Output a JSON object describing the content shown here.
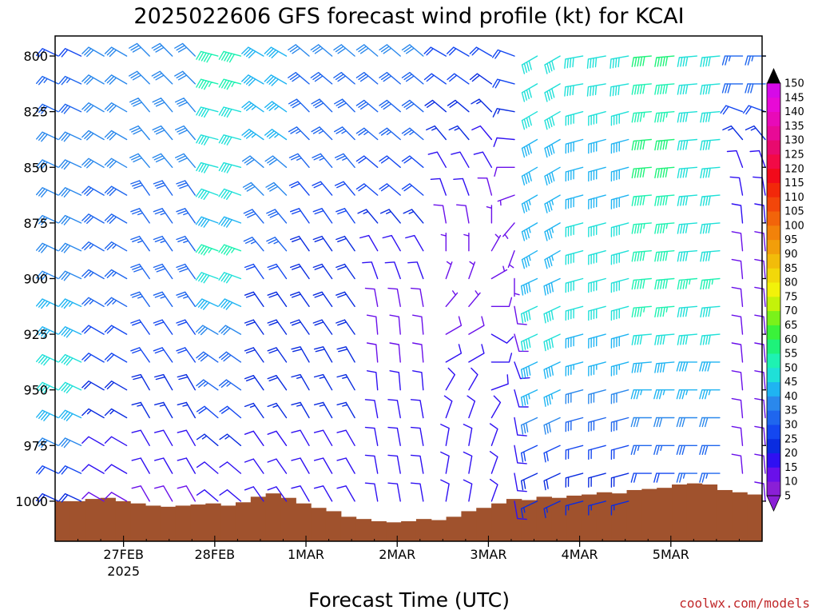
{
  "chart_data": {
    "type": "wind-barb time-height profile",
    "title": "2025022606 GFS forecast wind profile (kt) for KCAI",
    "xlabel": "Forecast Time (UTC)",
    "ylabel": "",
    "credit": "coolwx.com/models",
    "x_ticks": [
      {
        "label": "27FEB",
        "sublabel": "2025"
      },
      {
        "label": "28FEB",
        "sublabel": ""
      },
      {
        "label": "1MAR",
        "sublabel": ""
      },
      {
        "label": "2MAR",
        "sublabel": ""
      },
      {
        "label": "3MAR",
        "sublabel": ""
      },
      {
        "label": "4MAR",
        "sublabel": ""
      },
      {
        "label": "5MAR",
        "sublabel": ""
      }
    ],
    "y_ticks": [
      "800",
      "825",
      "850",
      "875",
      "900",
      "925",
      "950",
      "975",
      "1000"
    ],
    "colorbar_labels": [
      "5",
      "10",
      "15",
      "20",
      "25",
      "30",
      "35",
      "40",
      "45",
      "50",
      "55",
      "60",
      "65",
      "70",
      "75",
      "80",
      "85",
      "90",
      "95",
      "100",
      "105",
      "110",
      "115",
      "120",
      "125",
      "130",
      "135",
      "140",
      "145",
      "150"
    ],
    "colorbar_colors": [
      "#8a1fd6",
      "#6a10ea",
      "#2f10f2",
      "#0a2ce0",
      "#1447f0",
      "#1f66ee",
      "#2a88ec",
      "#1fb4f2",
      "#1fe0d8",
      "#1ef2b2",
      "#1ef27a",
      "#3af23a",
      "#7af21a",
      "#c4f20a",
      "#f2f20a",
      "#f2d80a",
      "#f2bc0a",
      "#f29e0a",
      "#f2820a",
      "#f2640a",
      "#f2460a",
      "#f2280a",
      "#f20a1a",
      "#f20a46",
      "#e80a6e",
      "#e80a96",
      "#e80ab8",
      "#e80ad6",
      "#d60ae8"
    ],
    "pressure_levels": [
      800,
      812.5,
      825,
      837.5,
      850,
      862.5,
      875,
      887.5,
      900,
      912.5,
      925,
      937.5,
      950,
      962.5,
      975,
      987.5,
      1000
    ],
    "times_hours": [
      0,
      6,
      12,
      18,
      24,
      30,
      36,
      42,
      48,
      54,
      60,
      66,
      72,
      78,
      84,
      90,
      96,
      102,
      108,
      114,
      120,
      126,
      132,
      138,
      144,
      150,
      156,
      162,
      168,
      174,
      180,
      186
    ],
    "x_domain_hours": [
      0,
      186
    ],
    "first_tick_hour": 18,
    "tick_step_hours": 24,
    "y_domain": [
      791,
      1018
    ],
    "surface_pressure": [
      1000,
      1000,
      999,
      998.5,
      1000,
      1001,
      1002,
      1002.5,
      1002,
      1001.5,
      1001,
      1002,
      1000.5,
      998,
      996.5,
      998.5,
      1001,
      1003,
      1004.5,
      1007,
      1008,
      1009,
      1009.5,
      1009,
      1008,
      1008.5,
      1007,
      1004.5,
      1003,
      1001,
      999,
      999.5,
      998,
      998.5,
      997.5,
      997,
      996,
      996.5,
      995,
      994.5,
      994,
      992.5,
      992,
      992.5,
      995,
      996,
      997
    ],
    "wind_profile": [
      {
        "times": [
          0,
          6
        ],
        "speed": [
          22,
          25,
          28,
          30,
          30,
          30,
          30,
          30,
          32,
          35,
          38,
          40,
          40,
          38,
          30,
          22,
          18
        ],
        "dir": [
          295,
          295,
          295,
          295,
          295,
          295,
          295,
          295,
          295,
          295,
          295,
          295,
          295,
          295,
          295,
          295,
          295
        ]
      },
      {
        "times": [
          12,
          18
        ],
        "speed": [
          30,
          30,
          32,
          30,
          30,
          28,
          28,
          25,
          25,
          25,
          22,
          20,
          18,
          15,
          12,
          10,
          8
        ],
        "dir": [
          300,
          300,
          300,
          300,
          300,
          300,
          300,
          300,
          300,
          300,
          300,
          300,
          300,
          300,
          300,
          300,
          300
        ]
      },
      {
        "times": [
          24,
          30,
          36
        ],
        "speed": [
          32,
          32,
          30,
          30,
          30,
          28,
          25,
          25,
          28,
          25,
          22,
          20,
          18,
          15,
          12,
          10,
          8
        ],
        "dir": [
          315,
          315,
          320,
          320,
          320,
          325,
          325,
          325,
          325,
          325,
          325,
          325,
          330,
          330,
          330,
          330,
          330
        ]
      },
      {
        "times": [
          42,
          48
        ],
        "speed": [
          48,
          45,
          42,
          40,
          42,
          40,
          38,
          45,
          42,
          38,
          32,
          28,
          25,
          20,
          15,
          12,
          10
        ],
        "dir": [
          285,
          285,
          285,
          285,
          285,
          290,
          290,
          290,
          290,
          295,
          300,
          305,
          305,
          310,
          310,
          310,
          310
        ]
      },
      {
        "times": [
          54,
          60
        ],
        "speed": [
          38,
          38,
          35,
          35,
          32,
          30,
          28,
          25,
          20,
          18,
          18,
          18,
          18,
          15,
          12,
          12,
          12
        ],
        "dir": [
          300,
          300,
          305,
          305,
          310,
          315,
          320,
          320,
          325,
          325,
          325,
          325,
          325,
          325,
          325,
          325,
          325
        ]
      },
      {
        "times": [
          66,
          72,
          78
        ],
        "speed": [
          30,
          28,
          28,
          25,
          25,
          22,
          20,
          18,
          18,
          18,
          18,
          18,
          15,
          15,
          12,
          12,
          10
        ],
        "dir": [
          310,
          310,
          315,
          315,
          320,
          320,
          325,
          325,
          325,
          325,
          325,
          330,
          330,
          330,
          330,
          330,
          330
        ]
      },
      {
        "times": [
          84,
          90,
          96
        ],
        "speed": [
          30,
          28,
          28,
          25,
          22,
          20,
          15,
          12,
          10,
          8,
          8,
          8,
          10,
          10,
          10,
          10,
          10
        ],
        "dir": [
          310,
          310,
          310,
          310,
          310,
          310,
          320,
          330,
          340,
          350,
          355,
          355,
          355,
          350,
          350,
          350,
          350
        ]
      },
      {
        "times": [
          102,
          108
        ],
        "speed": [
          22,
          20,
          18,
          15,
          12,
          10,
          8,
          5,
          5,
          5,
          8,
          10,
          10,
          12,
          12,
          12,
          10
        ],
        "dir": [
          300,
          305,
          310,
          320,
          330,
          340,
          350,
          360,
          20,
          40,
          60,
          60,
          30,
          20,
          10,
          10,
          10
        ]
      },
      {
        "times": [
          114
        ],
        "speed": [
          20,
          18,
          15,
          12,
          10,
          8,
          5,
          5,
          5,
          8,
          10,
          10,
          12,
          12,
          12,
          12,
          10
        ],
        "dir": [
          300,
          305,
          315,
          320,
          330,
          345,
          360,
          30,
          60,
          90,
          120,
          90,
          70,
          30,
          20,
          20,
          20
        ]
      },
      {
        "times": [
          120
        ],
        "speed": [
          22,
          20,
          15,
          10,
          8,
          5,
          5,
          5,
          5,
          8,
          8,
          10,
          10,
          10,
          10,
          10,
          10
        ],
        "dir": [
          290,
          285,
          280,
          275,
          270,
          250,
          220,
          200,
          180,
          170,
          165,
          160,
          165,
          170,
          170,
          170,
          170
        ]
      },
      {
        "times": [
          126,
          132
        ],
        "speed": [
          40,
          42,
          40,
          38,
          38,
          35,
          35,
          35,
          38,
          40,
          40,
          38,
          35,
          30,
          22,
          18,
          15
        ],
        "dir": [
          240,
          240,
          240,
          240,
          240,
          240,
          240,
          240,
          245,
          245,
          245,
          245,
          245,
          245,
          245,
          245,
          245
        ]
      },
      {
        "times": [
          138,
          144,
          150
        ],
        "speed": [
          42,
          42,
          40,
          38,
          38,
          38,
          40,
          40,
          40,
          40,
          38,
          35,
          32,
          28,
          22,
          18,
          15
        ],
        "dir": [
          260,
          260,
          255,
          255,
          255,
          255,
          255,
          255,
          255,
          255,
          255,
          255,
          255,
          255,
          255,
          255,
          255
        ]
      },
      {
        "times": [
          156,
          162
        ],
        "speed": [
          50,
          48,
          45,
          50,
          52,
          48,
          45,
          48,
          48,
          45,
          42,
          38,
          35,
          30,
          25,
          20,
          18
        ],
        "dir": [
          265,
          265,
          265,
          265,
          265,
          265,
          265,
          265,
          265,
          265,
          265,
          265,
          270,
          270,
          270,
          270,
          270
        ]
      },
      {
        "times": [
          168,
          174
        ],
        "speed": [
          42,
          40,
          40,
          40,
          42,
          42,
          40,
          42,
          45,
          42,
          40,
          38,
          35,
          30,
          28,
          25,
          22
        ],
        "dir": [
          265,
          265,
          265,
          265,
          265,
          265,
          265,
          265,
          265,
          265,
          265,
          270,
          270,
          270,
          270,
          270,
          270
        ]
      },
      {
        "times": [
          180,
          186
        ],
        "speed": [
          25,
          28,
          22,
          15,
          10,
          10,
          10,
          8,
          8,
          8,
          8,
          8,
          8,
          8,
          8,
          8,
          8
        ],
        "dir": [
          270,
          270,
          290,
          320,
          340,
          350,
          355,
          355,
          355,
          355,
          355,
          355,
          355,
          355,
          355,
          355,
          355
        ]
      }
    ],
    "grid": false,
    "legend": "right colorbar"
  }
}
